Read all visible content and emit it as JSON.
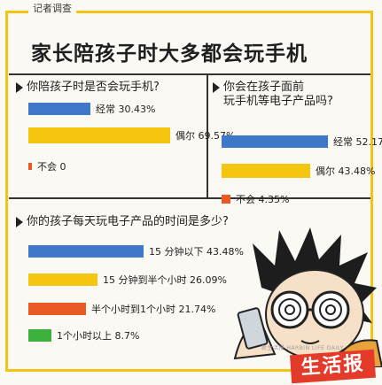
{
  "header": {
    "tag": "记者调查",
    "title": "家长陪孩子时大多都会玩手机"
  },
  "chart_data": [
    {
      "type": "bar",
      "title": "你陪孩子时是否会玩手机?",
      "categories": [
        "经常",
        "偶尔",
        "不会"
      ],
      "values": [
        30.43,
        69.57,
        0
      ],
      "value_labels": [
        "30.43%",
        "69.57%",
        "0"
      ],
      "colors": [
        "#3f78c8",
        "#f5c60f",
        "#e85a23"
      ]
    },
    {
      "type": "bar",
      "title": "你会在孩子面前玩手机等电子产品吗?",
      "title_lines": [
        "你会在孩子面前",
        "玩手机等电子产品吗?"
      ],
      "categories": [
        "经常",
        "偶尔",
        "不会"
      ],
      "values": [
        52.17,
        43.48,
        4.35
      ],
      "value_labels": [
        "52.17%",
        "43.48%",
        "4.35%"
      ],
      "colors": [
        "#3f78c8",
        "#f5c60f",
        "#e85a23"
      ]
    },
    {
      "type": "bar",
      "title": "你的孩子每天玩电子产品的时间是多少?",
      "categories": [
        "15 分钟以下",
        "15 分钟到半个小时",
        "半个小时到1个小时",
        "1个小时以上"
      ],
      "values": [
        43.48,
        26.09,
        21.74,
        8.7
      ],
      "value_labels": [
        "43.48%",
        "26.09%",
        "21.74%",
        "8.7%"
      ],
      "colors": [
        "#3f78c8",
        "#f5c60f",
        "#e85a23",
        "#3cb13c"
      ]
    }
  ],
  "branding": {
    "stamp": "生活报",
    "byline": "新生活报 HARBIN LIFE DAILY"
  },
  "illustration": {
    "icon": "cartoon-boy-with-phone-icon"
  }
}
